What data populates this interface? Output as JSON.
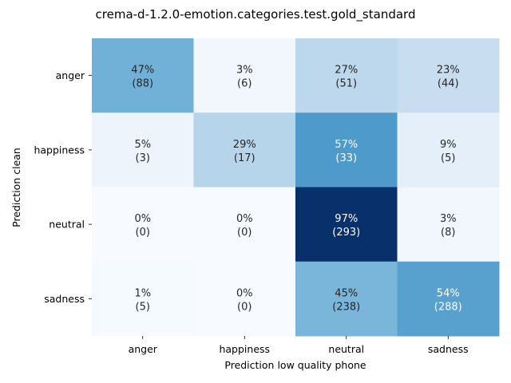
{
  "chart_data": {
    "type": "heatmap",
    "title": "crema-d-1.2.0-emotion.categories.test.gold_standard",
    "xlabel": "Prediction low quality phone",
    "ylabel": "Prediction clean",
    "x_categories": [
      "anger",
      "happiness",
      "neutral",
      "sadness"
    ],
    "y_categories": [
      "anger",
      "happiness",
      "neutral",
      "sadness"
    ],
    "percent_labels": [
      [
        "47%",
        "3%",
        "27%",
        "23%"
      ],
      [
        "5%",
        "29%",
        "57%",
        "9%"
      ],
      [
        "0%",
        "0%",
        "97%",
        "3%"
      ],
      [
        "1%",
        "0%",
        "45%",
        "54%"
      ]
    ],
    "count_labels": [
      [
        "(88)",
        "(6)",
        "(51)",
        "(44)"
      ],
      [
        "(3)",
        "(17)",
        "(33)",
        "(5)"
      ],
      [
        "(0)",
        "(0)",
        "(293)",
        "(8)"
      ],
      [
        "(5)",
        "(0)",
        "(238)",
        "(288)"
      ]
    ],
    "values": [
      [
        47,
        3,
        27,
        23
      ],
      [
        5,
        29,
        57,
        9
      ],
      [
        0,
        0,
        97,
        3
      ],
      [
        1,
        0,
        45,
        54
      ]
    ],
    "colormap": "Blues",
    "colorbar": false,
    "grid": false
  }
}
